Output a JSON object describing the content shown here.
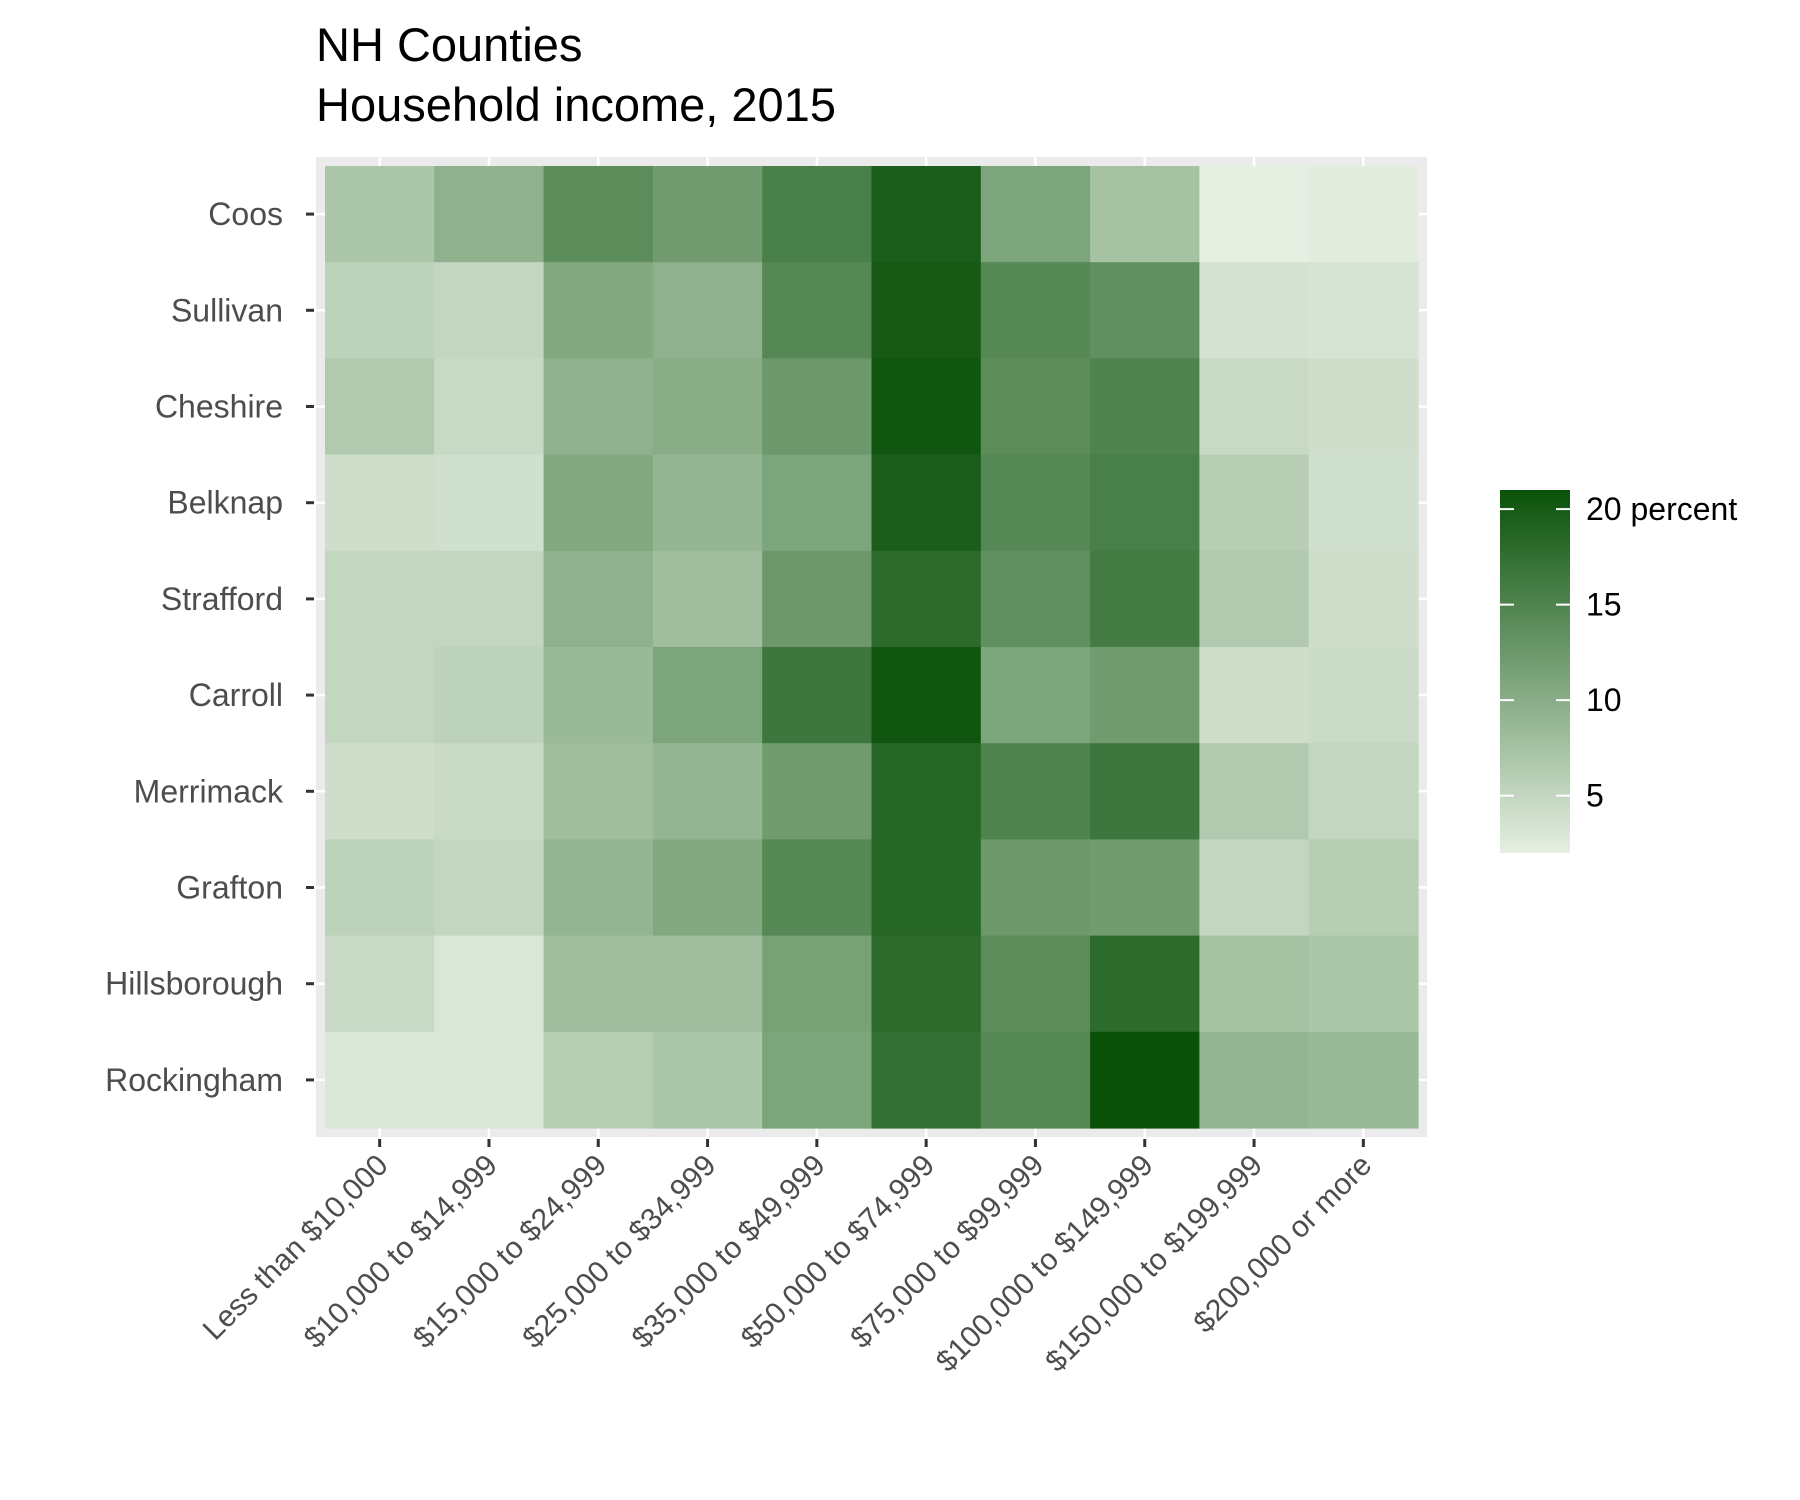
{
  "chart_data": {
    "type": "heatmap",
    "title": "NH Counties",
    "subtitle": "Household income, 2015",
    "xlabel": "",
    "ylabel": "",
    "x_categories": [
      "Less than $10,000",
      "$10,000 to $14,999",
      "$15,000 to $24,999",
      "$25,000 to $34,999",
      "$35,000 to $49,999",
      "$50,000 to $74,999",
      "$75,000 to $99,999",
      "$100,000 to $149,999",
      "$150,000 to $199,999",
      "$200,000 or more"
    ],
    "y_categories": [
      "Coos",
      "Sullivan",
      "Cheshire",
      "Belknap",
      "Strafford",
      "Carroll",
      "Merrimack",
      "Grafton",
      "Hillsborough",
      "Rockingham"
    ],
    "values": [
      [
        7.0,
        9.5,
        14.0,
        12.0,
        15.5,
        19.5,
        11.0,
        7.5,
        2.0,
        2.3
      ],
      [
        5.5,
        5.0,
        10.5,
        9.5,
        14.5,
        20.0,
        14.5,
        13.5,
        3.5,
        3.3
      ],
      [
        6.5,
        4.5,
        9.5,
        10.0,
        12.5,
        20.5,
        14.0,
        15.0,
        4.5,
        4.0
      ],
      [
        4.0,
        3.8,
        10.5,
        9.0,
        11.0,
        19.5,
        14.5,
        15.5,
        6.0,
        3.8
      ],
      [
        5.0,
        5.0,
        9.5,
        8.0,
        12.5,
        18.0,
        13.5,
        16.0,
        6.5,
        4.0
      ],
      [
        5.0,
        5.5,
        8.5,
        11.0,
        16.5,
        20.5,
        11.0,
        12.0,
        4.0,
        4.3
      ],
      [
        4.0,
        4.5,
        8.0,
        9.0,
        12.0,
        18.5,
        15.0,
        16.5,
        6.5,
        5.0
      ],
      [
        5.5,
        5.0,
        9.0,
        10.5,
        14.5,
        18.5,
        12.5,
        12.0,
        5.0,
        6.0
      ],
      [
        4.5,
        3.0,
        8.0,
        8.0,
        11.5,
        18.0,
        14.0,
        18.0,
        7.5,
        7.0
      ],
      [
        3.0,
        3.0,
        6.0,
        7.0,
        11.0,
        17.5,
        14.5,
        21.0,
        9.0,
        8.5
      ]
    ],
    "color_scale": {
      "low": "#e5efe2",
      "high": "#0a520a",
      "min": 2,
      "max": 21
    },
    "legend": {
      "position": "right",
      "breaks": [
        20,
        15,
        10,
        5
      ],
      "labels": [
        "20 percent",
        "15",
        "10",
        "5"
      ]
    },
    "grid": true
  }
}
